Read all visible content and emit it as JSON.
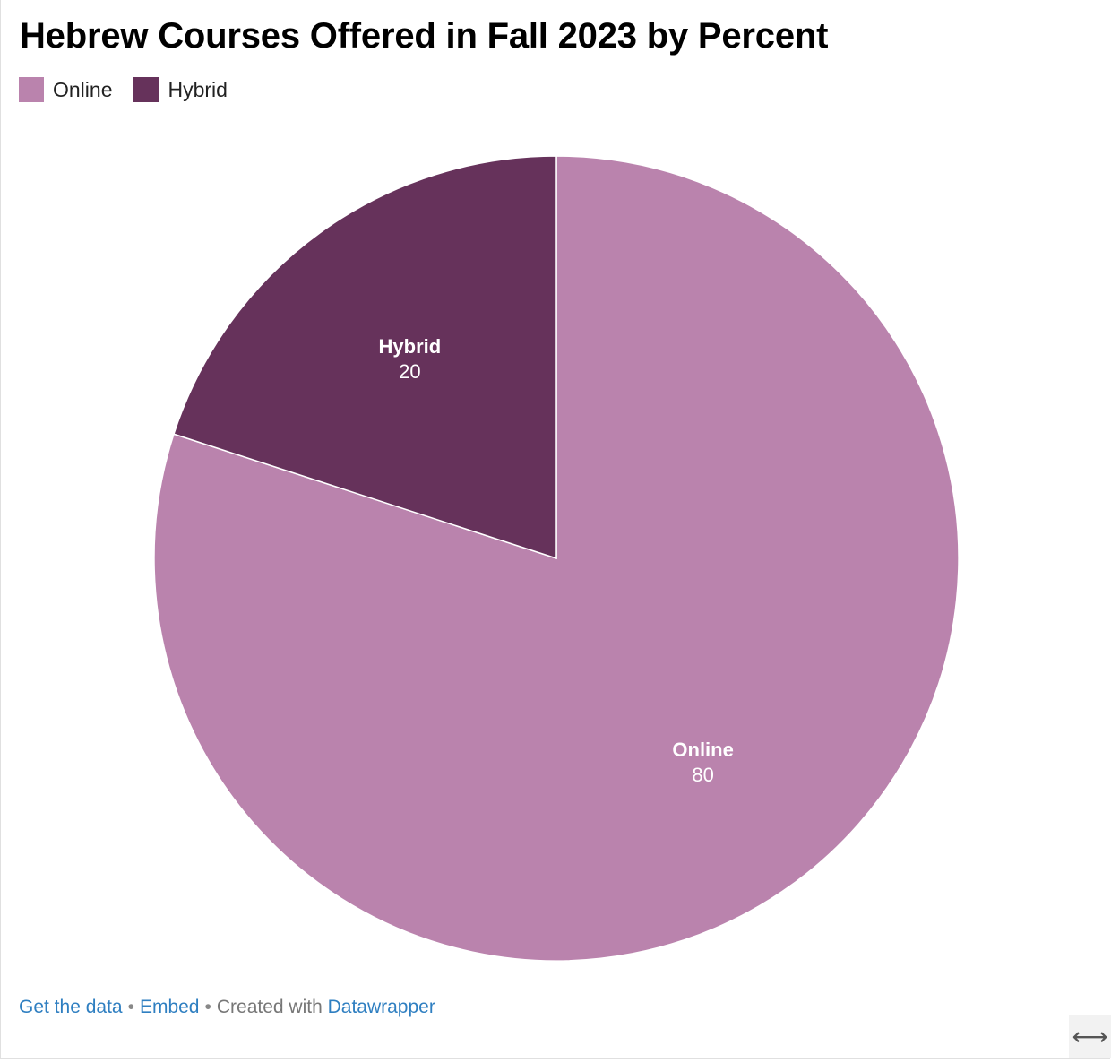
{
  "chart_data": {
    "type": "pie",
    "title": "Hebrew Courses Offered in Fall 2023 by Percent",
    "slices": [
      {
        "name": "Online",
        "value": 80,
        "color": "#ba83ad"
      },
      {
        "name": "Hybrid",
        "value": 20,
        "color": "#66325b"
      }
    ],
    "legend_placement": "top-left"
  },
  "legend": {
    "items": [
      {
        "label": "Online",
        "color": "#ba83ad"
      },
      {
        "label": "Hybrid",
        "color": "#66325b"
      }
    ]
  },
  "footer": {
    "get_data": "Get the data",
    "sep1": "•",
    "embed": "Embed",
    "sep2": "•",
    "created_with": "Created with",
    "datawrapper": "Datawrapper"
  },
  "expand_icon": {
    "name": "expand-horizontal-icon",
    "glyph": "⟷"
  }
}
